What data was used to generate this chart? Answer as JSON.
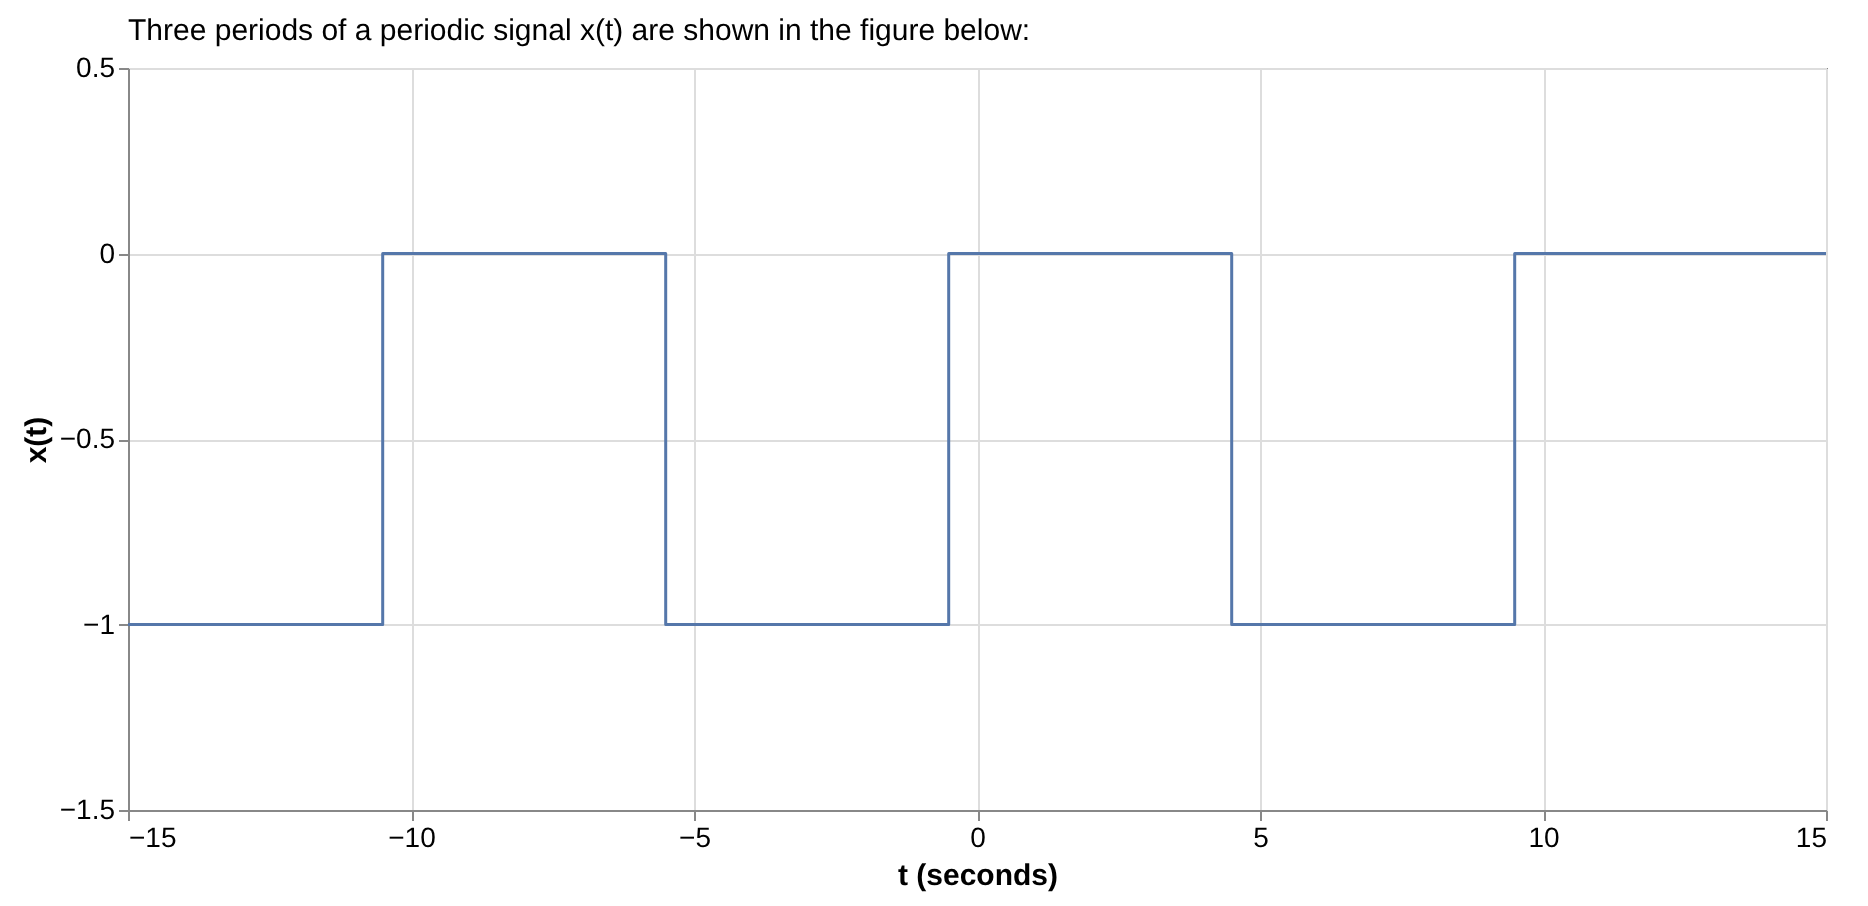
{
  "chart_data": {
    "type": "step",
    "title": "Three periods of a periodic signal x(t) are shown in the figure below:",
    "xlabel": "t (seconds)",
    "ylabel": "x(t)",
    "x": [
      -15,
      -10.5,
      -5.5,
      -0.5,
      4.5,
      9.5,
      15
    ],
    "series": [
      {
        "color": "#5577aa",
        "values": [
          -1,
          0,
          -1,
          0,
          -1,
          0,
          0
        ]
      }
    ],
    "xlim": [
      -15,
      15
    ],
    "xticks": [
      -15,
      -10,
      -5,
      0,
      5,
      10,
      15
    ],
    "ylim": [
      -1.5,
      0.5
    ],
    "yticks": [
      -1.5,
      -1,
      -0.5,
      0,
      0.5
    ],
    "grid": true,
    "marker": "none",
    "line_style": "solid"
  }
}
